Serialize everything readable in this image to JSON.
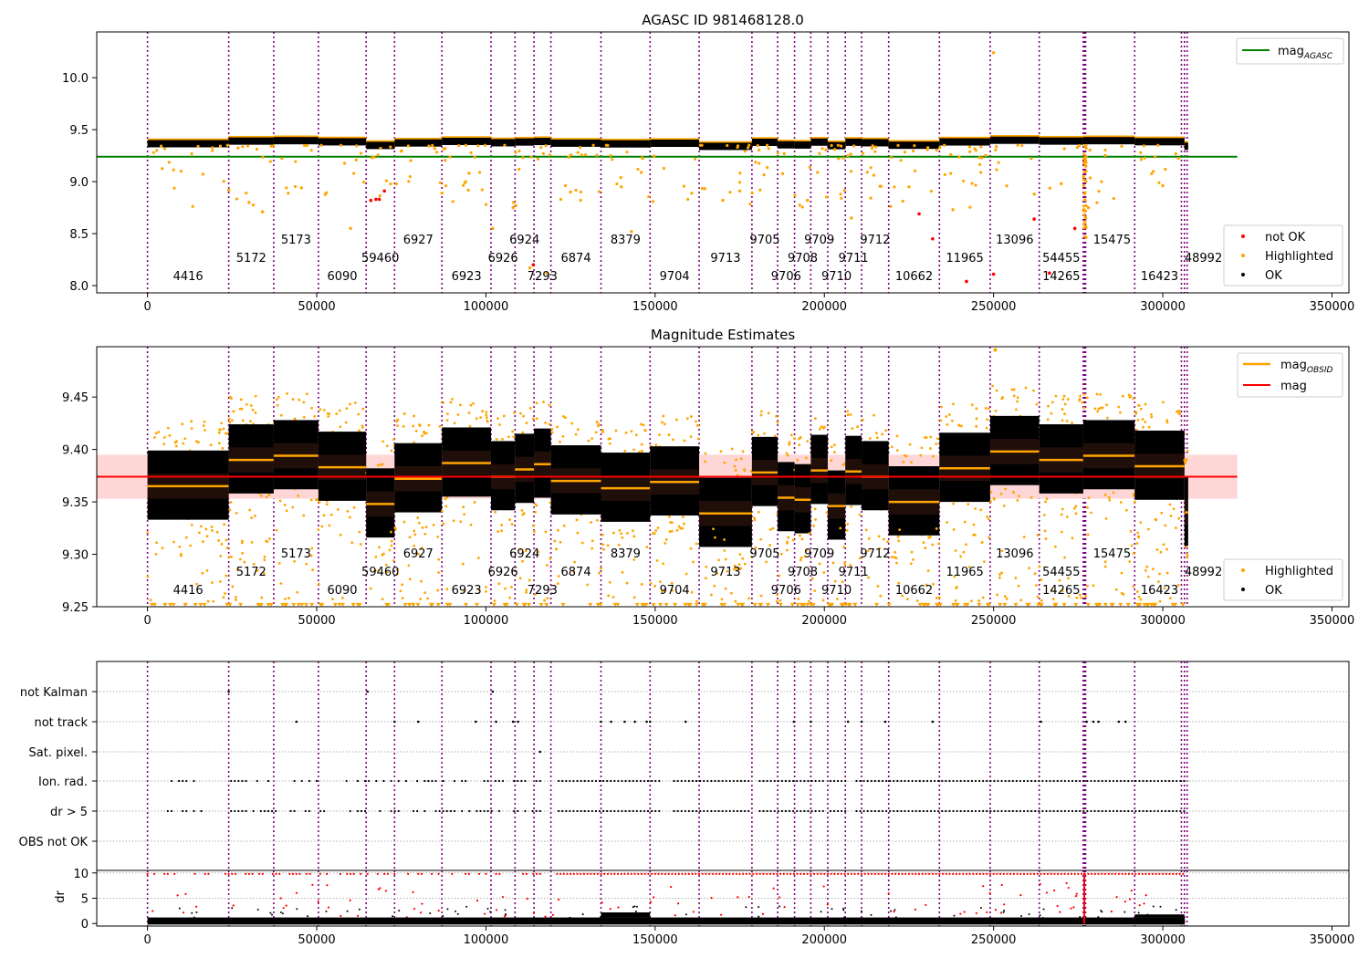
{
  "colors": {
    "not_ok": "#ff0000",
    "highlighted": "#ffa500",
    "ok": "#000000",
    "agasc_line": "#008000",
    "mag_line": "#ff0000",
    "obsid_line": "#ffa500",
    "obsid_boundary": "#800080",
    "mag_band": "#ffd6d6"
  },
  "obsids": [
    {
      "id": "4416",
      "start": 0,
      "row": 2
    },
    {
      "id": "5172",
      "start": 24000,
      "row": 1
    },
    {
      "id": "5173",
      "start": 37300,
      "row": 0
    },
    {
      "id": "6090",
      "start": 50500,
      "row": 2
    },
    {
      "id": "59460",
      "start": 64600,
      "row": 1
    },
    {
      "id": "6927",
      "start": 73000,
      "row": 0
    },
    {
      "id": "6923",
      "start": 87000,
      "row": 2
    },
    {
      "id": "6926",
      "start": 101500,
      "row": 1
    },
    {
      "id": "6924",
      "start": 108600,
      "row": 0
    },
    {
      "id": "7293",
      "start": 114200,
      "row": 2
    },
    {
      "id": "6874",
      "start": 119200,
      "row": 1
    },
    {
      "id": "8379",
      "start": 134000,
      "row": 0
    },
    {
      "id": "9704",
      "start": 148500,
      "row": 2
    },
    {
      "id": "9713",
      "start": 163000,
      "row": 1
    },
    {
      "id": "9705",
      "start": 178600,
      "row": 0
    },
    {
      "id": "9706",
      "start": 186200,
      "row": 2
    },
    {
      "id": "9708",
      "start": 191200,
      "row": 1
    },
    {
      "id": "9709",
      "start": 196000,
      "row": 0
    },
    {
      "id": "9710",
      "start": 201000,
      "row": 2
    },
    {
      "id": "9711",
      "start": 206200,
      "row": 1
    },
    {
      "id": "9712",
      "start": 211000,
      "row": 0
    },
    {
      "id": "10662",
      "start": 219000,
      "row": 2
    },
    {
      "id": "11965",
      "start": 234000,
      "row": 1
    },
    {
      "id": "13096",
      "start": 249000,
      "row": 0
    },
    {
      "id": "14265",
      "start": 263500,
      "row": 2
    },
    {
      "id": "54455",
      "start": 276500,
      "row": 1
    },
    {
      "id": "15475",
      "start": 277000,
      "row": 0
    },
    {
      "id": "16423",
      "start": 291700,
      "row": 2
    },
    {
      "id": "48992",
      "start": 306400,
      "row": 1
    }
  ],
  "chart_data": [
    {
      "type": "scatter",
      "title": "AGASC ID 981468128.0",
      "xlim": [
        -15000,
        355000
      ],
      "ylim": [
        7.93,
        10.44
      ],
      "xticks": [
        "0",
        "50000",
        "100000",
        "150000",
        "200000",
        "250000",
        "300000",
        "350000"
      ],
      "yticks": [
        "8.0",
        "8.5",
        "9.0",
        "9.5",
        "10.0"
      ],
      "mag_agasc": 9.24,
      "legend_top": [
        {
          "label": "mag",
          "sub": "AGASC"
        }
      ],
      "legend_bottom": [
        "not OK",
        "Highlighted",
        "OK"
      ],
      "segments": [
        {
          "start": 0,
          "end": 24000,
          "mean": 9.365
        },
        {
          "start": 24000,
          "end": 37300,
          "mean": 9.39
        },
        {
          "start": 37300,
          "end": 50500,
          "mean": 9.394
        },
        {
          "start": 50500,
          "end": 64600,
          "mean": 9.383
        },
        {
          "start": 64600,
          "end": 73000,
          "mean": 9.348
        },
        {
          "start": 73000,
          "end": 87000,
          "mean": 9.372
        },
        {
          "start": 87000,
          "end": 101500,
          "mean": 9.387
        },
        {
          "start": 101500,
          "end": 108600,
          "mean": 9.374
        },
        {
          "start": 108600,
          "end": 114200,
          "mean": 9.381
        },
        {
          "start": 114200,
          "end": 119200,
          "mean": 9.386
        },
        {
          "start": 119200,
          "end": 134000,
          "mean": 9.37
        },
        {
          "start": 134000,
          "end": 148500,
          "mean": 9.363
        },
        {
          "start": 148500,
          "end": 163000,
          "mean": 9.369
        },
        {
          "start": 163000,
          "end": 178600,
          "mean": 9.339
        },
        {
          "start": 178600,
          "end": 186200,
          "mean": 9.378
        },
        {
          "start": 186200,
          "end": 191200,
          "mean": 9.354
        },
        {
          "start": 191200,
          "end": 196000,
          "mean": 9.352
        },
        {
          "start": 196000,
          "end": 201000,
          "mean": 9.38
        },
        {
          "start": 201000,
          "end": 206200,
          "mean": 9.346
        },
        {
          "start": 206200,
          "end": 211000,
          "mean": 9.379
        },
        {
          "start": 211000,
          "end": 219000,
          "mean": 9.374
        },
        {
          "start": 219000,
          "end": 234000,
          "mean": 9.35
        },
        {
          "start": 234000,
          "end": 249000,
          "mean": 9.382
        },
        {
          "start": 249000,
          "end": 263500,
          "mean": 9.398
        },
        {
          "start": 263500,
          "end": 276500,
          "mean": 9.39
        },
        {
          "start": 276500,
          "end": 291700,
          "mean": 9.394
        },
        {
          "start": 291700,
          "end": 306400,
          "mean": 9.384
        },
        {
          "start": 306400,
          "end": 307500,
          "mean": 9.34
        }
      ],
      "outliers_not_ok": [
        [
          66000,
          8.82
        ],
        [
          67500,
          8.83
        ],
        [
          68500,
          8.83
        ],
        [
          70000,
          8.91
        ],
        [
          114000,
          8.2
        ],
        [
          228000,
          8.69
        ],
        [
          232000,
          8.45
        ],
        [
          242000,
          8.04
        ],
        [
          250000,
          8.11
        ],
        [
          262000,
          8.64
        ],
        [
          266500,
          8.12
        ],
        [
          274000,
          8.55
        ]
      ],
      "outliers_highlighted": [
        [
          250000,
          10.24
        ],
        [
          24000,
          8.92
        ],
        [
          30000,
          8.8
        ],
        [
          34000,
          8.71
        ],
        [
          45500,
          8.94
        ],
        [
          60000,
          8.55
        ],
        [
          73500,
          8.98
        ],
        [
          87000,
          8.89
        ],
        [
          95000,
          9.08
        ],
        [
          102000,
          8.55
        ],
        [
          108000,
          8.75
        ],
        [
          113000,
          8.17
        ],
        [
          118000,
          8.12
        ],
        [
          125000,
          8.9
        ],
        [
          140000,
          8.95
        ],
        [
          143000,
          8.52
        ],
        [
          170000,
          8.82
        ],
        [
          175000,
          8.91
        ],
        [
          195000,
          8.82
        ],
        [
          208000,
          8.65
        ],
        [
          225000,
          8.95
        ],
        [
          238000,
          8.73
        ],
        [
          262000,
          8.88
        ],
        [
          270000,
          8.98
        ],
        [
          278000,
          8.75
        ],
        [
          300000,
          8.96
        ]
      ]
    },
    {
      "type": "scatter",
      "title": "Magnitude Estimates",
      "xlim": [
        -15000,
        355000
      ],
      "ylim": [
        9.25,
        9.498
      ],
      "xticks": [
        "0",
        "50000",
        "100000",
        "150000",
        "200000",
        "250000",
        "300000",
        "350000"
      ],
      "yticks": [
        "9.25",
        "9.30",
        "9.35",
        "9.40",
        "9.45"
      ],
      "mag": 9.374,
      "mag_band": [
        9.353,
        9.395
      ],
      "legend_top": [
        {
          "label": "mag",
          "sub": "OBSID"
        },
        {
          "label": "mag",
          "sub": ""
        }
      ],
      "legend_bottom": [
        "Highlighted",
        "OK"
      ]
    },
    {
      "type": "scatter",
      "title": "",
      "ylabels": [
        "not Kalman",
        "not track",
        "Sat. pixel.",
        "Ion. rad.",
        "dr > 5",
        "OBS not OK"
      ],
      "xlim": [
        -15000,
        355000
      ],
      "xticks": [
        "0",
        "50000",
        "100000",
        "150000",
        "200000",
        "250000",
        "300000",
        "350000"
      ]
    },
    {
      "type": "scatter",
      "title": "",
      "ylabel": "dr",
      "ylim": [
        -0.5,
        10.5
      ],
      "yticks": [
        "0",
        "5",
        "10"
      ],
      "xlim": [
        -15000,
        355000
      ],
      "xticks": [
        "0",
        "50000",
        "100000",
        "150000",
        "200000",
        "250000",
        "300000",
        "350000"
      ]
    }
  ]
}
